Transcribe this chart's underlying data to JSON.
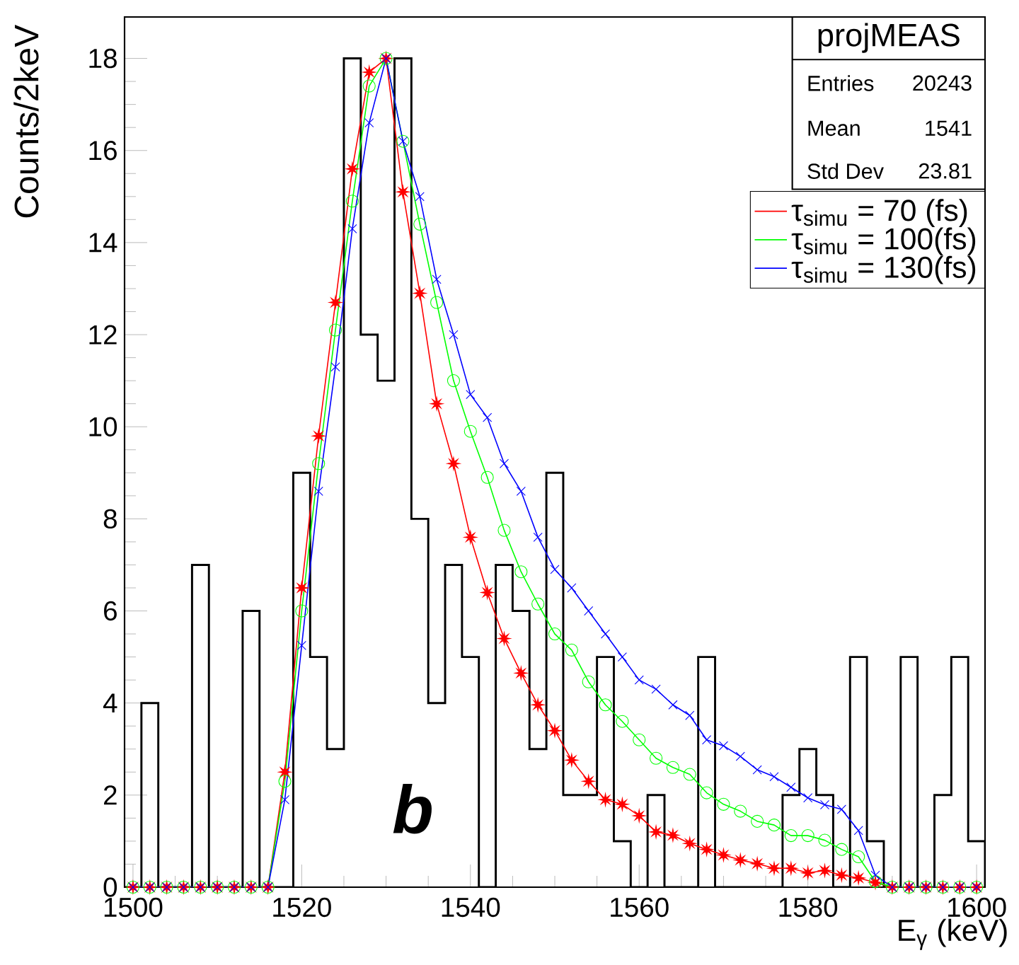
{
  "chart_data": {
    "type": "histogram",
    "xlabel": "E$_{γ}$ (keV)",
    "ylabel": "Counts/2keV",
    "xlim": [
      1499,
      1601
    ],
    "ylim": [
      0,
      18.9
    ],
    "xticks": [
      1500,
      1520,
      1540,
      1560,
      1580,
      1600
    ],
    "yticks": [
      0,
      2,
      4,
      6,
      8,
      10,
      12,
      14,
      16,
      18
    ],
    "legend": "top right",
    "grid": false,
    "annotations": [
      "projMEAS",
      "Entries",
      "20243",
      "Mean",
      "1541",
      "Std Dev",
      "23.81",
      "b"
    ],
    "series": [
      {
        "color": "#000000",
        "bins": [
          1499,
          1501,
          1503,
          1505,
          1507,
          1509,
          1511,
          1513,
          1515,
          1517,
          1519,
          1521,
          1523,
          1525,
          1527,
          1529,
          1531,
          1533,
          1535,
          1537,
          1539,
          1541,
          1543,
          1545,
          1547,
          1549,
          1551,
          1553,
          1555,
          1557,
          1559,
          1561,
          1563,
          1565,
          1567,
          1569,
          1571,
          1573,
          1575,
          1577,
          1579,
          1581,
          1583,
          1585,
          1587,
          1589,
          1591,
          1593,
          1595,
          1597,
          1599,
          1601
        ],
        "values": [
          0,
          4,
          0,
          0,
          7,
          0,
          0,
          6,
          0,
          0,
          9,
          5,
          3,
          18,
          12,
          11,
          18,
          8,
          4,
          7,
          5,
          0,
          7,
          6,
          3,
          9,
          2,
          2,
          5,
          1,
          0,
          2,
          0,
          0,
          5,
          0,
          0,
          0,
          0,
          2,
          3,
          2,
          0,
          5,
          1,
          0,
          5,
          0,
          2,
          5,
          1
        ]
      },
      {
        "type": "line",
        "name": "τ$_{simu}$ = 70 (fs)",
        "color": "#ff0000",
        "marker": "star",
        "x": [
          1500,
          1502,
          1504,
          1506,
          1508,
          1510,
          1512,
          1514,
          1516,
          1518,
          1520,
          1522,
          1524,
          1526,
          1528,
          1530,
          1532,
          1534,
          1536,
          1538,
          1540,
          1542,
          1544,
          1546,
          1548,
          1550,
          1552,
          1554,
          1556,
          1558,
          1560,
          1562,
          1564,
          1566,
          1568,
          1570,
          1572,
          1574,
          1576,
          1578,
          1580,
          1582,
          1584,
          1586,
          1588,
          1590,
          1592,
          1594,
          1596,
          1598,
          1600
        ],
        "values": [
          0,
          0,
          0,
          0,
          0,
          0,
          0,
          0,
          0,
          2.5,
          6.5,
          9.8,
          12.7,
          15.6,
          17.7,
          18.0,
          15.1,
          12.9,
          10.5,
          9.2,
          7.6,
          6.4,
          5.4,
          4.65,
          3.96,
          3.4,
          2.76,
          2.3,
          1.9,
          1.8,
          1.55,
          1.2,
          1.13,
          0.95,
          0.82,
          0.7,
          0.59,
          0.51,
          0.41,
          0.41,
          0.31,
          0.36,
          0.26,
          0.2,
          0.1,
          0,
          0,
          0,
          0,
          0,
          0
        ]
      },
      {
        "type": "line",
        "name": "τ$_{simu}$ = 100(fs)",
        "color": "#00ff00",
        "marker": "circle",
        "x": [
          1500,
          1502,
          1504,
          1506,
          1508,
          1510,
          1512,
          1514,
          1516,
          1518,
          1520,
          1522,
          1524,
          1526,
          1528,
          1530,
          1532,
          1534,
          1536,
          1538,
          1540,
          1542,
          1544,
          1546,
          1548,
          1550,
          1552,
          1554,
          1556,
          1558,
          1560,
          1562,
          1564,
          1566,
          1568,
          1570,
          1572,
          1574,
          1576,
          1578,
          1580,
          1582,
          1584,
          1586,
          1588,
          1590,
          1592,
          1594,
          1596,
          1598,
          1600
        ],
        "values": [
          0,
          0,
          0,
          0,
          0,
          0,
          0,
          0,
          0,
          2.3,
          6.0,
          9.2,
          12.1,
          14.9,
          17.4,
          18.0,
          16.2,
          14.4,
          12.7,
          11.0,
          9.9,
          8.9,
          7.75,
          6.85,
          6.15,
          5.5,
          5.15,
          4.46,
          3.96,
          3.6,
          3.2,
          2.8,
          2.6,
          2.45,
          2.05,
          1.8,
          1.65,
          1.43,
          1.35,
          1.12,
          1.12,
          1.02,
          0.82,
          0.66,
          0.12,
          0,
          0,
          0,
          0,
          0,
          0
        ]
      },
      {
        "type": "line",
        "name": "τ$_{simu}$ = 130(fs)",
        "color": "#0000ff",
        "marker": "cross",
        "x": [
          1500,
          1502,
          1504,
          1506,
          1508,
          1510,
          1512,
          1514,
          1516,
          1518,
          1520,
          1522,
          1524,
          1526,
          1528,
          1530,
          1532,
          1534,
          1536,
          1538,
          1540,
          1542,
          1544,
          1546,
          1548,
          1550,
          1552,
          1554,
          1556,
          1558,
          1560,
          1562,
          1564,
          1566,
          1568,
          1570,
          1572,
          1574,
          1576,
          1578,
          1580,
          1582,
          1584,
          1586,
          1588,
          1590,
          1592,
          1594,
          1596,
          1598,
          1600
        ],
        "values": [
          0,
          0,
          0,
          0,
          0,
          0,
          0,
          0,
          0,
          1.9,
          5.25,
          8.6,
          11.3,
          14.3,
          16.6,
          18.0,
          16.2,
          15.0,
          13.2,
          12.0,
          10.7,
          10.2,
          9.2,
          8.6,
          7.6,
          6.9,
          6.5,
          6.0,
          5.5,
          5.0,
          4.5,
          4.3,
          3.96,
          3.73,
          3.2,
          3.07,
          2.84,
          2.55,
          2.4,
          2.17,
          1.94,
          1.79,
          1.69,
          1.23,
          0.26,
          0,
          0,
          0,
          0,
          0,
          0
        ]
      }
    ]
  }
}
